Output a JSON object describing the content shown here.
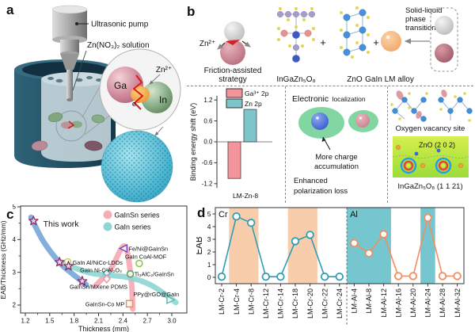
{
  "panel_a": {
    "label": "a",
    "pump_label": "Ultrasonic pump",
    "solution_label": "Zn(NO₃)₂ solution",
    "inset": {
      "zn_ion": "Zn²⁺",
      "ga": "Ga",
      "electron": "e⁻",
      "indium": "In"
    }
  },
  "panel_b": {
    "label": "b",
    "reaction": {
      "zn_ion": "Zn²⁺",
      "friction_caption_line1": "Friction-assisted",
      "friction_caption_line2": "strategy",
      "igzo_formula": "InGaZn₅O₈",
      "plus_1": "+",
      "zno_formula": "ZnO",
      "plus_2": "+",
      "alloy_caption": "GaIn LM alloy",
      "phase_line1": "Solid-liquid",
      "phase_line2": "phase",
      "phase_line3": "transition"
    },
    "mechanism": {
      "electronic_word1": "Electronic",
      "electronic_word2": "localization",
      "charge_line1": "More charge",
      "charge_line2": "accumulation",
      "polarization_line1": "Enhanced",
      "polarization_line2": "polarization loss",
      "vacancy_caption": "Oxygen vacancy site",
      "zno_plane": "ZnO (2 0 2)",
      "igzo_plane": "InGaZn₅O₈ (1 1 21)"
    }
  },
  "panel_c": {
    "label": "c",
    "annotation": "This work"
  },
  "panel_d": {
    "label": "d"
  },
  "chart_data": [
    {
      "id": "binding-energy-shift",
      "type": "bar",
      "categories": [
        "LM-Zn-8"
      ],
      "series": [
        {
          "name": "Ga³⁺ 2p",
          "color": "#f5949b",
          "values": [
            -1.05
          ]
        },
        {
          "name": "Zn 2p",
          "color": "#7cc5cb",
          "values": [
            0.93
          ]
        }
      ],
      "ylabel": "Binding energy shift (eV)",
      "ylim": [
        -1.32,
        1.32
      ],
      "yticks": [
        1.2,
        0.6,
        0.0,
        -0.6,
        -1.2
      ]
    },
    {
      "id": "eab-thickness-comparison",
      "type": "scatter",
      "xlabel": "Thickness (mm)",
      "ylabel": "EAB/Thickness (GHz/mm)",
      "xlim": [
        1.15,
        3.18
      ],
      "ylim": [
        1.76,
        5.02
      ],
      "xticks": [
        1.2,
        1.5,
        1.8,
        2.1,
        2.4,
        2.7,
        3.0
      ],
      "yticks": [
        2,
        3,
        4,
        5
      ],
      "annotation": "This work",
      "annotation_pos": [
        1.42,
        4.4
      ],
      "legend": [
        {
          "label": "GaInSn series",
          "color": "#f6aeb6"
        },
        {
          "label": "GaIn series",
          "color": "#90d5d2"
        }
      ],
      "this_work": {
        "marker": "star",
        "color": "#9c2963",
        "fill": "#cfe0f2",
        "points": [
          [
            1.3,
            4.57
          ],
          [
            1.62,
            3.31
          ],
          [
            1.73,
            3.19
          ],
          [
            1.9,
            2.73
          ]
        ]
      },
      "references": [
        {
          "label": "GaIn Al/NiCo-LDOs",
          "x": 1.72,
          "y": 3.32,
          "marker": "circle",
          "color": "#c2cf62",
          "lx": 1.78,
          "ly": 3.3,
          "anchor": "start"
        },
        {
          "label": "GaIn Ni-C-Al₂O₃",
          "x": 2.2,
          "y": 2.98,
          "marker": "diamond",
          "color": "#49b5c4",
          "lx": 2.13,
          "ly": 3.07,
          "anchor": "middle"
        },
        {
          "label": "Fe/Ni@GaInSn",
          "x": 2.41,
          "y": 3.73,
          "marker": "triangle-left",
          "color": "#7a4fb5",
          "lx": 2.47,
          "ly": 3.72,
          "anchor": "start"
        },
        {
          "label": "GaIn CoAl-MOF",
          "x": 2.6,
          "y": 3.27,
          "marker": "circle",
          "color": "#8ec63f",
          "lx": 2.68,
          "ly": 3.47,
          "anchor": "middle"
        },
        {
          "label": "Ti₃AlC₂/GaInSn",
          "x": 2.49,
          "y": 2.95,
          "marker": "circle",
          "color": "#58a05c",
          "lx": 2.54,
          "ly": 2.94,
          "anchor": "start"
        },
        {
          "label": "GaInSn/MXene PDMS",
          "x": 2.2,
          "y": 2.8,
          "marker": "diamond",
          "color": "#ef93a2",
          "lx": 2.1,
          "ly": 2.56,
          "anchor": "middle"
        },
        {
          "label": "GaInSn-Co MP",
          "x": 2.48,
          "y": 2.04,
          "marker": "square",
          "color": "#f09046",
          "lx": 2.42,
          "ly": 2.03,
          "anchor": "end"
        },
        {
          "label": "PPy@rGO@GaIn",
          "x": 2.98,
          "y": 2.16,
          "marker": "triangle-right",
          "color": "#63bdb2",
          "lx": 3.09,
          "ly": 2.33,
          "anchor": "end"
        }
      ],
      "curves": [
        {
          "name": "this-work-trend",
          "color": "#6fa1d6",
          "opacity": 0.85,
          "points": [
            [
              1.27,
              4.68
            ],
            [
              1.42,
              3.95
            ],
            [
              1.62,
              3.3
            ],
            [
              1.78,
              2.95
            ],
            [
              1.95,
              2.62
            ]
          ]
        },
        {
          "name": "gainsn-trend",
          "color": "#f6a9b3",
          "opacity": 0.9,
          "points": [
            [
              2.06,
              2.58
            ],
            [
              2.25,
              3.1
            ],
            [
              2.42,
              3.8
            ],
            [
              2.5,
              2.8
            ],
            [
              2.52,
              1.88
            ]
          ]
        },
        {
          "name": "gain-trend",
          "color": "#8fd5d0",
          "opacity": 0.9,
          "points": [
            [
              1.63,
              3.32
            ],
            [
              2.0,
              2.98
            ],
            [
              2.45,
              2.85
            ],
            [
              2.75,
              2.6
            ],
            [
              3.05,
              2.08
            ]
          ]
        }
      ]
    },
    {
      "id": "eab-vs-composition",
      "type": "line",
      "ylabel": "EAB",
      "ylim": [
        -0.5,
        5.5
      ],
      "yticks": [
        0,
        1,
        2,
        3,
        4,
        5
      ],
      "groups": [
        {
          "name": "Cr",
          "label_color": "#3aa3d8",
          "line_color": "#2f9cb5",
          "band_color": "#f7c49c",
          "categories": [
            "LM-Cr-2",
            "LM-Cr-4",
            "LM-Cr-8",
            "LM-Cr-12",
            "LM-Cr-14",
            "LM-Cr-18",
            "LM-Cr-20",
            "LM-Cr-22",
            "LM-Cr-24"
          ],
          "values": [
            0.05,
            4.8,
            4.3,
            0.05,
            0.05,
            2.85,
            3.35,
            0.05,
            0.05
          ],
          "bands": [
            {
              "from": 1,
              "to": 2
            },
            {
              "from": 5,
              "to": 6
            }
          ]
        },
        {
          "name": "Al",
          "label_color": "#e8473e",
          "line_color": "#ef8f62",
          "band_color": "#6ec3cb",
          "categories": [
            "LM-Al-4",
            "LM-Al-8",
            "LM-Al-12",
            "LM-Al-16",
            "LM-Al-20",
            "LM-Al-24",
            "LM-Al-28",
            "LM-Al-32"
          ],
          "values": [
            2.7,
            1.9,
            3.4,
            0.1,
            0.1,
            4.7,
            0.1,
            0.1
          ],
          "bands": [
            {
              "from": 0,
              "to": 2
            },
            {
              "from": 5,
              "to": 5
            }
          ]
        }
      ]
    }
  ]
}
